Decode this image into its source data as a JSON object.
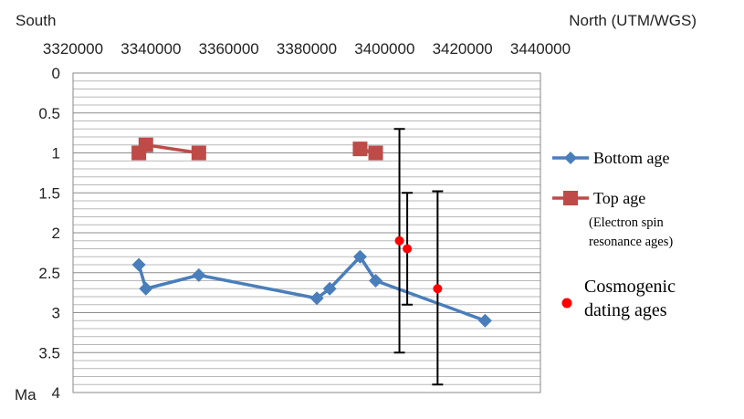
{
  "chart_data": {
    "type": "scatter",
    "title": "",
    "corner_labels": {
      "left": "South",
      "right": "North (UTM/WGS)"
    },
    "y_unit_label": "Ma",
    "xlim": [
      3320000,
      3440000
    ],
    "ylim": [
      0,
      4
    ],
    "y_reversed": true,
    "x_axis_position": "top",
    "x_ticks": [
      "3320000",
      "3340000",
      "3360000",
      "3380000",
      "3400000",
      "3420000",
      "3440000"
    ],
    "x_tick_values": [
      3320000,
      3340000,
      3360000,
      3380000,
      3400000,
      3420000,
      3440000
    ],
    "y_ticks": [
      "0",
      "0.5",
      "1",
      "1.5",
      "2",
      "2.5",
      "3",
      "3.5",
      "4"
    ],
    "y_tick_values": [
      0,
      0.5,
      1,
      1.5,
      2,
      2.5,
      3,
      3.5,
      4
    ],
    "grid": true,
    "legend_position": "right",
    "series": [
      {
        "name": "Bottom age",
        "color": "#4a7ebb",
        "marker": "diamond",
        "line": true,
        "x": [
          3336900,
          3338700,
          3352300,
          3382600,
          3385900,
          3393700,
          3397700,
          3425800
        ],
        "y": [
          2.4,
          2.7,
          2.53,
          2.82,
          2.7,
          2.3,
          2.6,
          3.1
        ]
      },
      {
        "name": "Top age",
        "note": "(Electron spin resonance ages)",
        "color": "#be4b48",
        "marker": "square",
        "line": true,
        "segments": [
          {
            "x": [
              3336900,
              3338700,
              3352300
            ],
            "y": [
              1.0,
              0.9,
              1.0
            ]
          },
          {
            "x": [
              3393700,
              3397700
            ],
            "y": [
              0.95,
              1.0
            ]
          }
        ]
      },
      {
        "name": "Cosmogenic dating ages",
        "color": "#ff0000",
        "marker": "circle",
        "line": false,
        "x": [
          3403800,
          3405800,
          3413600
        ],
        "y": [
          2.1,
          2.2,
          2.7
        ],
        "error_low": [
          3.5,
          2.9,
          3.9
        ],
        "error_high": [
          0.7,
          1.5,
          1.48
        ]
      }
    ]
  }
}
